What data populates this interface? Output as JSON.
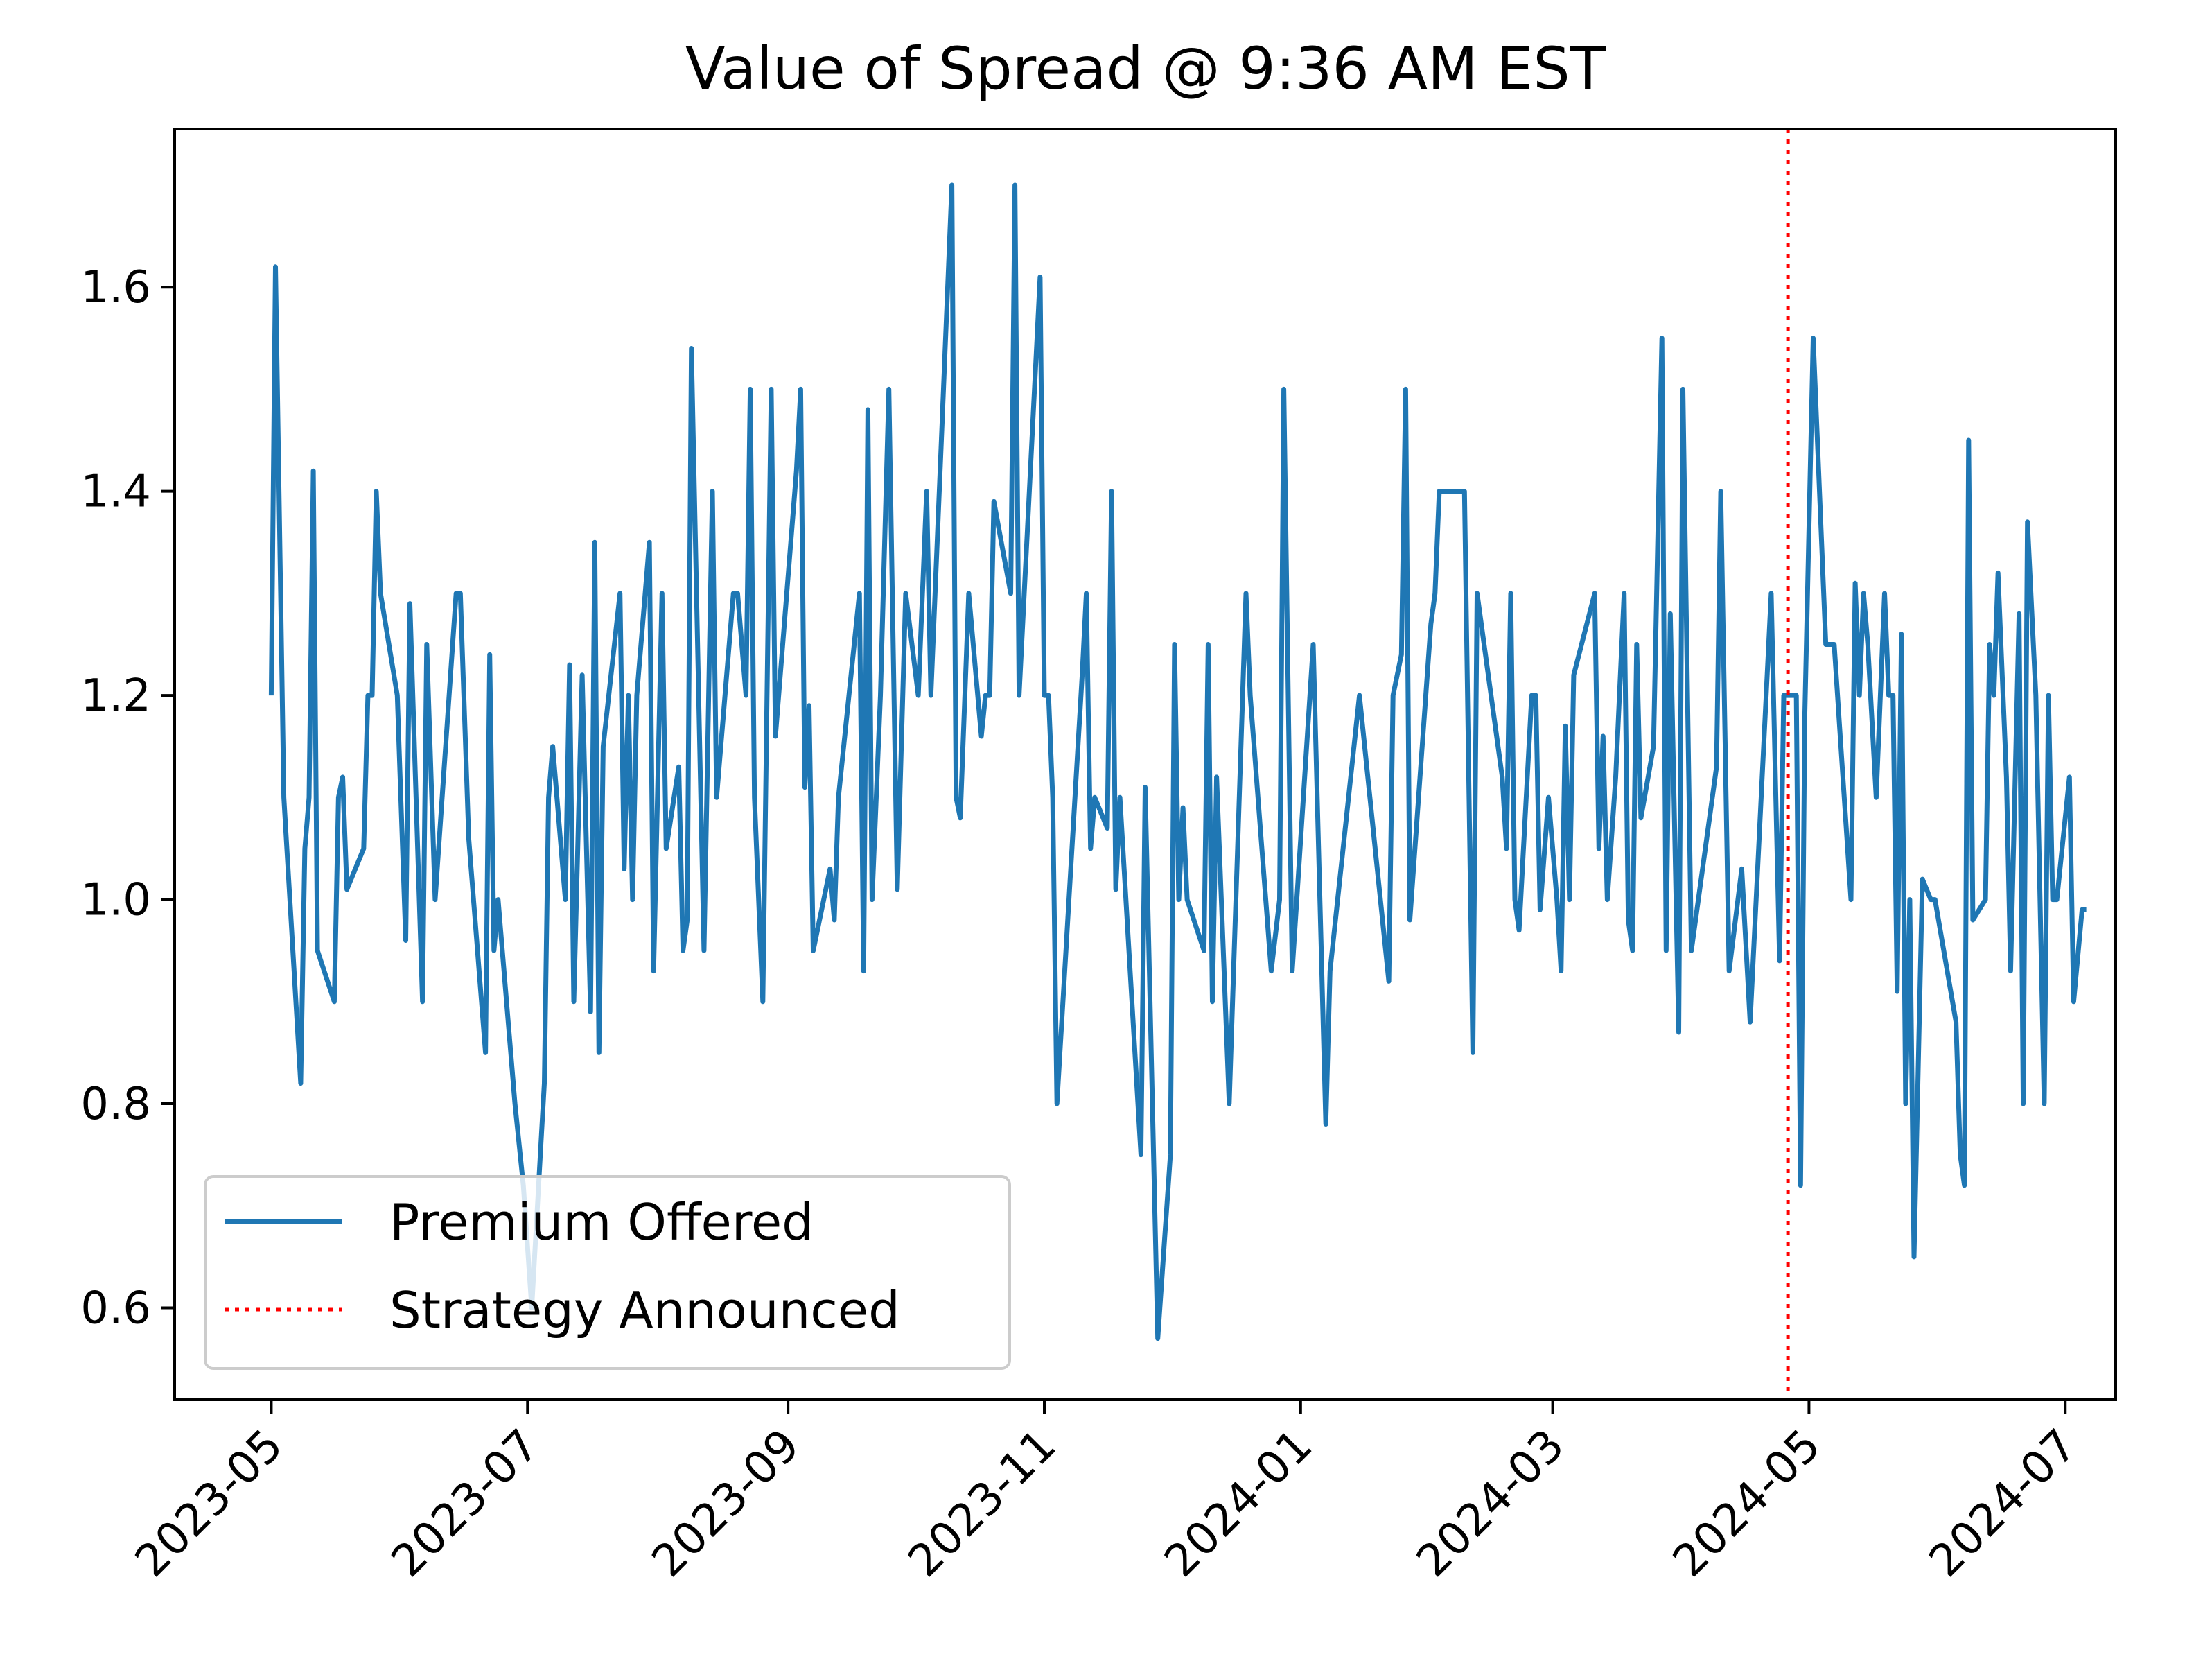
{
  "chart_data": {
    "type": "line",
    "title": "Value of Spread @ 9:36 AM EST",
    "xlabel": "",
    "ylabel": "",
    "xlim": [
      "2023-04-08",
      "2024-07-13"
    ],
    "ylim": [
      0.51,
      1.755
    ],
    "x_ticks": [
      "2023-05",
      "2023-07",
      "2023-09",
      "2023-11",
      "2024-01",
      "2024-03",
      "2024-05",
      "2024-07"
    ],
    "y_ticks": [
      "0.6",
      "0.8",
      "1.0",
      "1.2",
      "1.4",
      "1.6"
    ],
    "grid": false,
    "legend": {
      "placement": "lower-left"
    },
    "series": [
      {
        "name": "Premium Offered",
        "color": "#1f77b4",
        "style": "solid",
        "points": [
          [
            "2023-05-01",
            1.2
          ],
          [
            "2023-05-02",
            1.62
          ],
          [
            "2023-05-04",
            1.1
          ],
          [
            "2023-05-08",
            0.82
          ],
          [
            "2023-05-09",
            1.05
          ],
          [
            "2023-05-10",
            1.1
          ],
          [
            "2023-05-11",
            1.42
          ],
          [
            "2023-05-12",
            0.95
          ],
          [
            "2023-05-16",
            0.9
          ],
          [
            "2023-05-17",
            1.1
          ],
          [
            "2023-05-18",
            1.12
          ],
          [
            "2023-05-19",
            1.01
          ],
          [
            "2023-05-23",
            1.05
          ],
          [
            "2023-05-24",
            1.2
          ],
          [
            "2023-05-25",
            1.2
          ],
          [
            "2023-05-26",
            1.4
          ],
          [
            "2023-05-27",
            1.3
          ],
          [
            "2023-05-31",
            1.2
          ],
          [
            "2023-06-02",
            0.96
          ],
          [
            "2023-06-03",
            1.29
          ],
          [
            "2023-06-06",
            0.9
          ],
          [
            "2023-06-07",
            1.25
          ],
          [
            "2023-06-09",
            1.0
          ],
          [
            "2023-06-14",
            1.3
          ],
          [
            "2023-06-15",
            1.3
          ],
          [
            "2023-06-17",
            1.06
          ],
          [
            "2023-06-21",
            0.85
          ],
          [
            "2023-06-22",
            1.24
          ],
          [
            "2023-06-23",
            0.95
          ],
          [
            "2023-06-24",
            1.0
          ],
          [
            "2023-06-28",
            0.8
          ],
          [
            "2023-06-30",
            0.72
          ],
          [
            "2023-07-02",
            0.6
          ],
          [
            "2023-07-05",
            0.82
          ],
          [
            "2023-07-06",
            1.1
          ],
          [
            "2023-07-07",
            1.15
          ],
          [
            "2023-07-10",
            1.0
          ],
          [
            "2023-07-11",
            1.23
          ],
          [
            "2023-07-12",
            0.9
          ],
          [
            "2023-07-14",
            1.22
          ],
          [
            "2023-07-16",
            0.89
          ],
          [
            "2023-07-17",
            1.35
          ],
          [
            "2023-07-18",
            0.85
          ],
          [
            "2023-07-19",
            1.15
          ],
          [
            "2023-07-23",
            1.3
          ],
          [
            "2023-07-24",
            1.03
          ],
          [
            "2023-07-25",
            1.2
          ],
          [
            "2023-07-26",
            1.0
          ],
          [
            "2023-07-27",
            1.2
          ],
          [
            "2023-07-30",
            1.35
          ],
          [
            "2023-07-31",
            0.93
          ],
          [
            "2023-08-02",
            1.3
          ],
          [
            "2023-08-03",
            1.05
          ],
          [
            "2023-08-06",
            1.13
          ],
          [
            "2023-08-07",
            0.95
          ],
          [
            "2023-08-08",
            0.98
          ],
          [
            "2023-08-09",
            1.54
          ],
          [
            "2023-08-12",
            0.95
          ],
          [
            "2023-08-14",
            1.4
          ],
          [
            "2023-08-15",
            1.1
          ],
          [
            "2023-08-19",
            1.3
          ],
          [
            "2023-08-20",
            1.3
          ],
          [
            "2023-08-22",
            1.2
          ],
          [
            "2023-08-23",
            1.5
          ],
          [
            "2023-08-24",
            1.1
          ],
          [
            "2023-08-26",
            0.9
          ],
          [
            "2023-08-28",
            1.5
          ],
          [
            "2023-08-29",
            1.16
          ],
          [
            "2023-09-03",
            1.42
          ],
          [
            "2023-09-04",
            1.5
          ],
          [
            "2023-09-05",
            1.11
          ],
          [
            "2023-09-06",
            1.19
          ],
          [
            "2023-09-07",
            0.95
          ],
          [
            "2023-09-11",
            1.03
          ],
          [
            "2023-09-12",
            0.98
          ],
          [
            "2023-09-13",
            1.1
          ],
          [
            "2023-09-18",
            1.3
          ],
          [
            "2023-09-19",
            0.93
          ],
          [
            "2023-09-20",
            1.48
          ],
          [
            "2023-09-21",
            1.0
          ],
          [
            "2023-09-23",
            1.2
          ],
          [
            "2023-09-25",
            1.5
          ],
          [
            "2023-09-27",
            1.01
          ],
          [
            "2023-09-29",
            1.3
          ],
          [
            "2023-10-02",
            1.2
          ],
          [
            "2023-10-04",
            1.4
          ],
          [
            "2023-10-05",
            1.2
          ],
          [
            "2023-10-10",
            1.7
          ],
          [
            "2023-10-11",
            1.1
          ],
          [
            "2023-10-12",
            1.08
          ],
          [
            "2023-10-14",
            1.3
          ],
          [
            "2023-10-17",
            1.16
          ],
          [
            "2023-10-18",
            1.2
          ],
          [
            "2023-10-19",
            1.2
          ],
          [
            "2023-10-20",
            1.39
          ],
          [
            "2023-10-24",
            1.3
          ],
          [
            "2023-10-25",
            1.7
          ],
          [
            "2023-10-26",
            1.2
          ],
          [
            "2023-10-31",
            1.61
          ],
          [
            "2023-11-01",
            1.2
          ],
          [
            "2023-11-02",
            1.2
          ],
          [
            "2023-11-03",
            1.1
          ],
          [
            "2023-11-04",
            0.8
          ],
          [
            "2023-11-10",
            1.22
          ],
          [
            "2023-11-11",
            1.3
          ],
          [
            "2023-11-12",
            1.05
          ],
          [
            "2023-11-13",
            1.1
          ],
          [
            "2023-11-16",
            1.07
          ],
          [
            "2023-11-17",
            1.4
          ],
          [
            "2023-11-18",
            1.01
          ],
          [
            "2023-11-19",
            1.1
          ],
          [
            "2023-11-24",
            0.75
          ],
          [
            "2023-11-25",
            1.11
          ],
          [
            "2023-11-28",
            0.57
          ],
          [
            "2023-12-01",
            0.75
          ],
          [
            "2023-12-02",
            1.25
          ],
          [
            "2023-12-03",
            1.0
          ],
          [
            "2023-12-04",
            1.09
          ],
          [
            "2023-12-05",
            1.0
          ],
          [
            "2023-12-09",
            0.95
          ],
          [
            "2023-12-10",
            1.25
          ],
          [
            "2023-12-11",
            0.9
          ],
          [
            "2023-12-12",
            1.12
          ],
          [
            "2023-12-15",
            0.8
          ],
          [
            "2023-12-19",
            1.3
          ],
          [
            "2023-12-20",
            1.2
          ],
          [
            "2023-12-25",
            0.93
          ],
          [
            "2023-12-27",
            1.0
          ],
          [
            "2023-12-28",
            1.5
          ],
          [
            "2023-12-30",
            0.93
          ],
          [
            "2024-01-04",
            1.25
          ],
          [
            "2024-01-07",
            0.78
          ],
          [
            "2024-01-08",
            0.93
          ],
          [
            "2024-01-15",
            1.2
          ],
          [
            "2024-01-22",
            0.92
          ],
          [
            "2024-01-23",
            1.2
          ],
          [
            "2024-01-25",
            1.24
          ],
          [
            "2024-01-26",
            1.5
          ],
          [
            "2024-01-27",
            0.98
          ],
          [
            "2024-02-01",
            1.27
          ],
          [
            "2024-02-02",
            1.3
          ],
          [
            "2024-02-03",
            1.4
          ],
          [
            "2024-02-08",
            1.4
          ],
          [
            "2024-02-09",
            1.4
          ],
          [
            "2024-02-11",
            0.85
          ],
          [
            "2024-02-12",
            1.3
          ],
          [
            "2024-02-18",
            1.12
          ],
          [
            "2024-02-19",
            1.05
          ],
          [
            "2024-02-20",
            1.3
          ],
          [
            "2024-02-21",
            1.0
          ],
          [
            "2024-02-22",
            0.97
          ],
          [
            "2024-02-25",
            1.2
          ],
          [
            "2024-02-26",
            1.2
          ],
          [
            "2024-02-27",
            0.99
          ],
          [
            "2024-02-29",
            1.1
          ],
          [
            "2024-03-02",
            1.0
          ],
          [
            "2024-03-03",
            0.93
          ],
          [
            "2024-03-04",
            1.17
          ],
          [
            "2024-03-05",
            1.0
          ],
          [
            "2024-03-06",
            1.22
          ],
          [
            "2024-03-11",
            1.3
          ],
          [
            "2024-03-12",
            1.05
          ],
          [
            "2024-03-13",
            1.16
          ],
          [
            "2024-03-14",
            1.0
          ],
          [
            "2024-03-16",
            1.12
          ],
          [
            "2024-03-18",
            1.3
          ],
          [
            "2024-03-19",
            0.98
          ],
          [
            "2024-03-20",
            0.95
          ],
          [
            "2024-03-21",
            1.25
          ],
          [
            "2024-03-22",
            1.08
          ],
          [
            "2024-03-25",
            1.15
          ],
          [
            "2024-03-27",
            1.55
          ],
          [
            "2024-03-28",
            0.95
          ],
          [
            "2024-03-29",
            1.28
          ],
          [
            "2024-03-31",
            0.87
          ],
          [
            "2024-04-01",
            1.5
          ],
          [
            "2024-04-03",
            0.95
          ],
          [
            "2024-04-09",
            1.13
          ],
          [
            "2024-04-10",
            1.4
          ],
          [
            "2024-04-12",
            0.93
          ],
          [
            "2024-04-15",
            1.03
          ],
          [
            "2024-04-17",
            0.88
          ],
          [
            "2024-04-22",
            1.3
          ],
          [
            "2024-04-24",
            0.94
          ],
          [
            "2024-04-25",
            1.2
          ],
          [
            "2024-04-28",
            1.2
          ],
          [
            "2024-04-29",
            0.72
          ],
          [
            "2024-04-30",
            1.18
          ],
          [
            "2024-05-02",
            1.55
          ],
          [
            "2024-05-05",
            1.25
          ],
          [
            "2024-05-07",
            1.25
          ],
          [
            "2024-05-11",
            1.0
          ],
          [
            "2024-05-12",
            1.31
          ],
          [
            "2024-05-13",
            1.2
          ],
          [
            "2024-05-14",
            1.3
          ],
          [
            "2024-05-15",
            1.25
          ],
          [
            "2024-05-17",
            1.1
          ],
          [
            "2024-05-19",
            1.3
          ],
          [
            "2024-05-20",
            1.2
          ],
          [
            "2024-05-21",
            1.2
          ],
          [
            "2024-05-22",
            0.91
          ],
          [
            "2024-05-23",
            1.26
          ],
          [
            "2024-05-24",
            0.8
          ],
          [
            "2024-05-25",
            1.0
          ],
          [
            "2024-05-26",
            0.65
          ],
          [
            "2024-05-28",
            1.02
          ],
          [
            "2024-05-30",
            1.0
          ],
          [
            "2024-05-31",
            1.0
          ],
          [
            "2024-06-05",
            0.88
          ],
          [
            "2024-06-06",
            0.75
          ],
          [
            "2024-06-07",
            0.72
          ],
          [
            "2024-06-08",
            1.45
          ],
          [
            "2024-06-09",
            0.98
          ],
          [
            "2024-06-12",
            1.0
          ],
          [
            "2024-06-13",
            1.25
          ],
          [
            "2024-06-14",
            1.2
          ],
          [
            "2024-06-15",
            1.32
          ],
          [
            "2024-06-17",
            1.12
          ],
          [
            "2024-06-18",
            0.93
          ],
          [
            "2024-06-20",
            1.28
          ],
          [
            "2024-06-21",
            0.8
          ],
          [
            "2024-06-22",
            1.37
          ],
          [
            "2024-06-24",
            1.2
          ],
          [
            "2024-06-26",
            0.8
          ],
          [
            "2024-06-27",
            1.2
          ],
          [
            "2024-06-28",
            1.0
          ],
          [
            "2024-06-29",
            1.0
          ],
          [
            "2024-07-02",
            1.12
          ],
          [
            "2024-07-03",
            0.9
          ],
          [
            "2024-07-05",
            0.99
          ],
          [
            "2024-07-06",
            0.99
          ]
        ]
      },
      {
        "name": "Strategy Announced",
        "color": "#ff0000",
        "style": "dotted",
        "vertical_line_at": "2024-04-26"
      }
    ]
  }
}
